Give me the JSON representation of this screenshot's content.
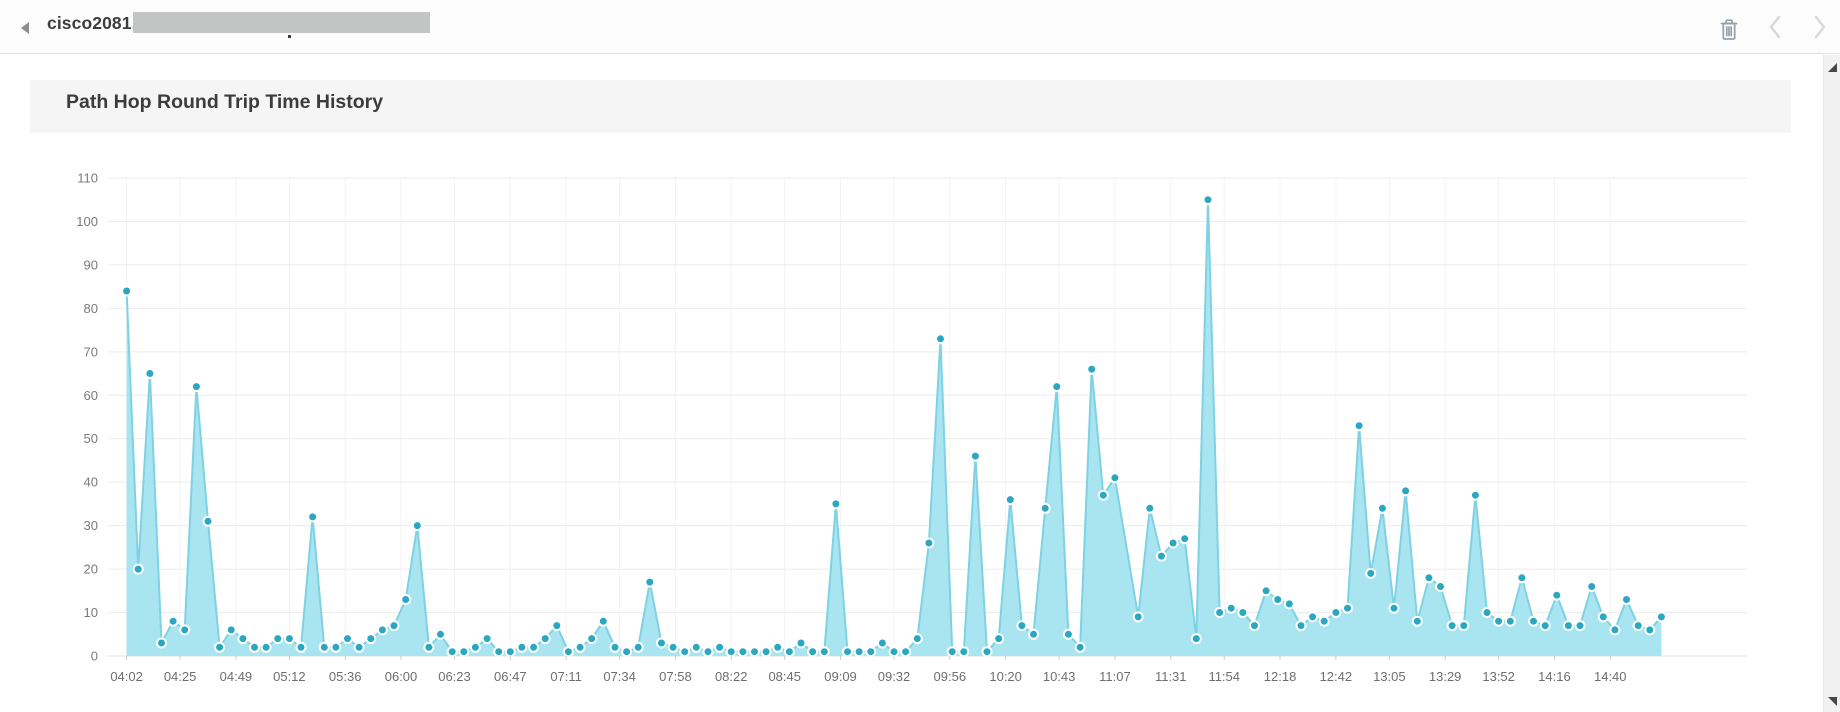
{
  "header": {
    "device_title": "cisco2081.",
    "device_name_redacted": true,
    "back_icon": "left-triangle",
    "toolbar": {
      "delete_icon": "trash",
      "prev_icon": "chevron-left",
      "next_icon": "chevron-right"
    }
  },
  "panel": {
    "title": "Path Hop Round Trip Time History"
  },
  "chart_data": {
    "type": "area",
    "title": "Path Hop Round Trip Time History",
    "ylabel": "",
    "xlabel": "",
    "ylim": [
      0,
      110
    ],
    "y_ticks": [
      0,
      10,
      20,
      30,
      40,
      50,
      60,
      70,
      80,
      90,
      100,
      110
    ],
    "grid": true,
    "x_start_time": "04:02",
    "x_interval_minutes": 5,
    "x_tick_labels": [
      "04:02",
      "04:25",
      "04:49",
      "05:12",
      "05:36",
      "06:00",
      "06:23",
      "06:47",
      "07:11",
      "07:34",
      "07:58",
      "08:22",
      "08:45",
      "09:09",
      "09:32",
      "09:56",
      "10:20",
      "10:43",
      "11:07",
      "11:31",
      "11:54",
      "12:18",
      "12:42",
      "13:05",
      "13:29",
      "13:52",
      "14:16",
      "14:40"
    ],
    "x_tick_minutes": [
      0,
      23,
      47,
      70,
      94,
      118,
      141,
      165,
      189,
      212,
      236,
      260,
      283,
      307,
      330,
      354,
      378,
      401,
      425,
      449,
      472,
      496,
      520,
      543,
      567,
      590,
      614,
      638
    ],
    "values": [
      84,
      20,
      65,
      3,
      8,
      6,
      62,
      31,
      2,
      6,
      4,
      2,
      2,
      4,
      4,
      2,
      32,
      2,
      2,
      4,
      2,
      4,
      6,
      7,
      13,
      30,
      2,
      5,
      1,
      1,
      2,
      4,
      1,
      1,
      2,
      2,
      4,
      7,
      1,
      2,
      4,
      8,
      2,
      1,
      2,
      17,
      3,
      2,
      1,
      2,
      1,
      2,
      1,
      1,
      1,
      1,
      2,
      1,
      3,
      1,
      1,
      35,
      1,
      1,
      1,
      3,
      1,
      1,
      4,
      26,
      73,
      1,
      1,
      46,
      1,
      4,
      36,
      7,
      5,
      34,
      62,
      5,
      2,
      66,
      37,
      41,
      null,
      9,
      34,
      23,
      26,
      27,
      4,
      105,
      10,
      11,
      10,
      7,
      15,
      13,
      12,
      7,
      9,
      8,
      10,
      11,
      53,
      19,
      34,
      11,
      38,
      8,
      18,
      16,
      7,
      7,
      37,
      10,
      8,
      8,
      18,
      8,
      7,
      14,
      7,
      7,
      16,
      9,
      6,
      13,
      7,
      6,
      9
    ],
    "colors": {
      "area_fill": "#a9e4f1",
      "line": "#7ed2e4",
      "marker": "#2ba7c1",
      "marker_ring": "#ffffff",
      "grid": "#ececec",
      "vgrid": "#f3f3f3",
      "baseline": "#e0e0e0",
      "tick_mark": "#cccccc",
      "y_text": "#7a7a7a",
      "x_text": "#6e6e6e"
    }
  }
}
